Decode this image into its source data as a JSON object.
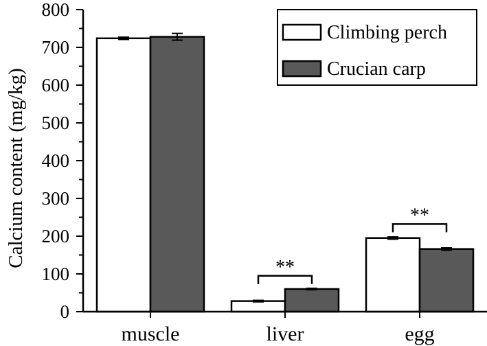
{
  "chart_data": {
    "type": "bar",
    "title": "",
    "xlabel": "",
    "ylabel": "Calcium content (mg/kg)",
    "categories": [
      "muscle",
      "liver",
      "egg"
    ],
    "series": [
      {
        "name": "Climbing perch",
        "color": "#ffffff",
        "values": [
          724,
          28,
          195
        ],
        "errors": [
          3,
          2,
          3
        ]
      },
      {
        "name": "Crucian carp",
        "color": "#595959",
        "values": [
          728,
          60,
          166
        ],
        "errors": [
          9,
          2,
          3
        ]
      }
    ],
    "ylim": [
      0,
      800
    ],
    "yticks": [
      0,
      100,
      200,
      300,
      400,
      500,
      600,
      700,
      800
    ],
    "ytick_labels": [
      "0",
      "100",
      "200",
      "300",
      "400",
      "500",
      "600",
      "700",
      "800"
    ],
    "legend_position": "top-right",
    "annotations": [
      {
        "category": "liver",
        "text": "**",
        "bracket_level": 95
      },
      {
        "category": "egg",
        "text": "**",
        "bracket_level": 232
      }
    ],
    "grid": false
  }
}
